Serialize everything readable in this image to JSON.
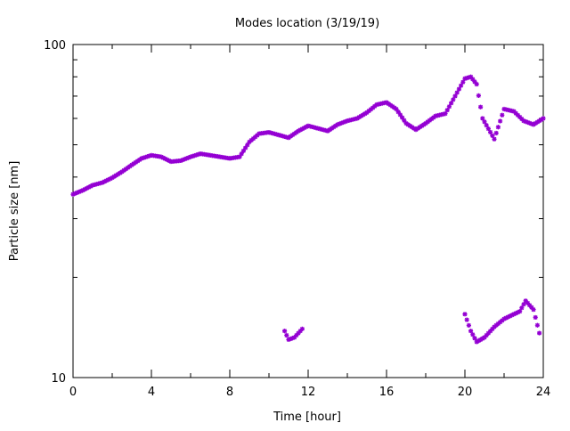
{
  "chart_data": {
    "type": "scatter",
    "title": "Modes location (3/19/19)",
    "xlabel": "Time [hour]",
    "ylabel": "Particle size [nm]",
    "xlim": [
      0,
      24
    ],
    "ylim": [
      10,
      100
    ],
    "yscale": "log",
    "grid": false,
    "legend": "none",
    "marker_color": "#9400d3",
    "x_ticks": [
      0,
      4,
      8,
      12,
      16,
      20,
      24
    ],
    "x_minor_ticks": [
      2,
      6,
      10,
      14,
      18,
      22
    ],
    "x_tick_labels": [
      "0",
      "4",
      "8",
      "12",
      "16",
      "20",
      "24"
    ],
    "y_ticks": [
      10,
      100
    ],
    "y_tick_labels": [
      "10",
      "100"
    ],
    "y_minor_ticks": [
      20,
      30,
      40,
      50,
      60,
      70,
      80,
      90
    ],
    "series": [
      {
        "x": [
          0.0,
          0.5,
          1.0,
          1.5,
          2.0,
          2.5,
          3.0,
          3.5,
          4.0,
          4.5,
          5.0,
          5.5,
          6.0,
          6.5,
          7.0,
          7.5,
          8.0,
          8.5,
          9.0,
          9.5,
          10.0,
          10.5,
          11.0,
          11.5,
          12.0,
          12.5,
          13.0,
          13.5,
          14.0,
          14.5,
          15.0,
          15.5,
          16.0,
          16.5,
          17.0,
          17.5,
          18.0,
          18.5,
          19.0,
          19.5,
          20.0,
          20.3,
          20.6,
          20.9,
          21.5,
          22.0,
          22.5,
          23.0,
          23.5,
          24.0
        ],
        "y": [
          35.5,
          36.5,
          37.8,
          38.5,
          39.8,
          41.5,
          43.5,
          45.5,
          46.5,
          46.0,
          44.5,
          44.8,
          46.0,
          47.0,
          46.5,
          46.0,
          45.5,
          46.0,
          51.0,
          54.0,
          54.5,
          53.5,
          52.5,
          55.0,
          57.0,
          56.0,
          55.0,
          57.5,
          59.0,
          60.0,
          62.5,
          66.0,
          67.0,
          64.0,
          58.0,
          55.5,
          58.0,
          61.0,
          62.0,
          70.0,
          79.0,
          80.0,
          76.0,
          60.0,
          52.0,
          64.0,
          63.0,
          59.0,
          57.5,
          60.0
        ]
      },
      {
        "x": [
          10.8,
          11.0,
          11.3,
          11.7,
          20.0,
          20.3,
          20.6,
          21.0,
          21.5,
          22.0,
          22.5,
          22.8,
          23.1,
          23.5,
          23.8
        ],
        "y": [
          13.8,
          13.0,
          13.2,
          14.0,
          15.5,
          13.8,
          12.8,
          13.2,
          14.2,
          15.0,
          15.5,
          15.8,
          17.0,
          16.0,
          13.6
        ]
      }
    ]
  }
}
